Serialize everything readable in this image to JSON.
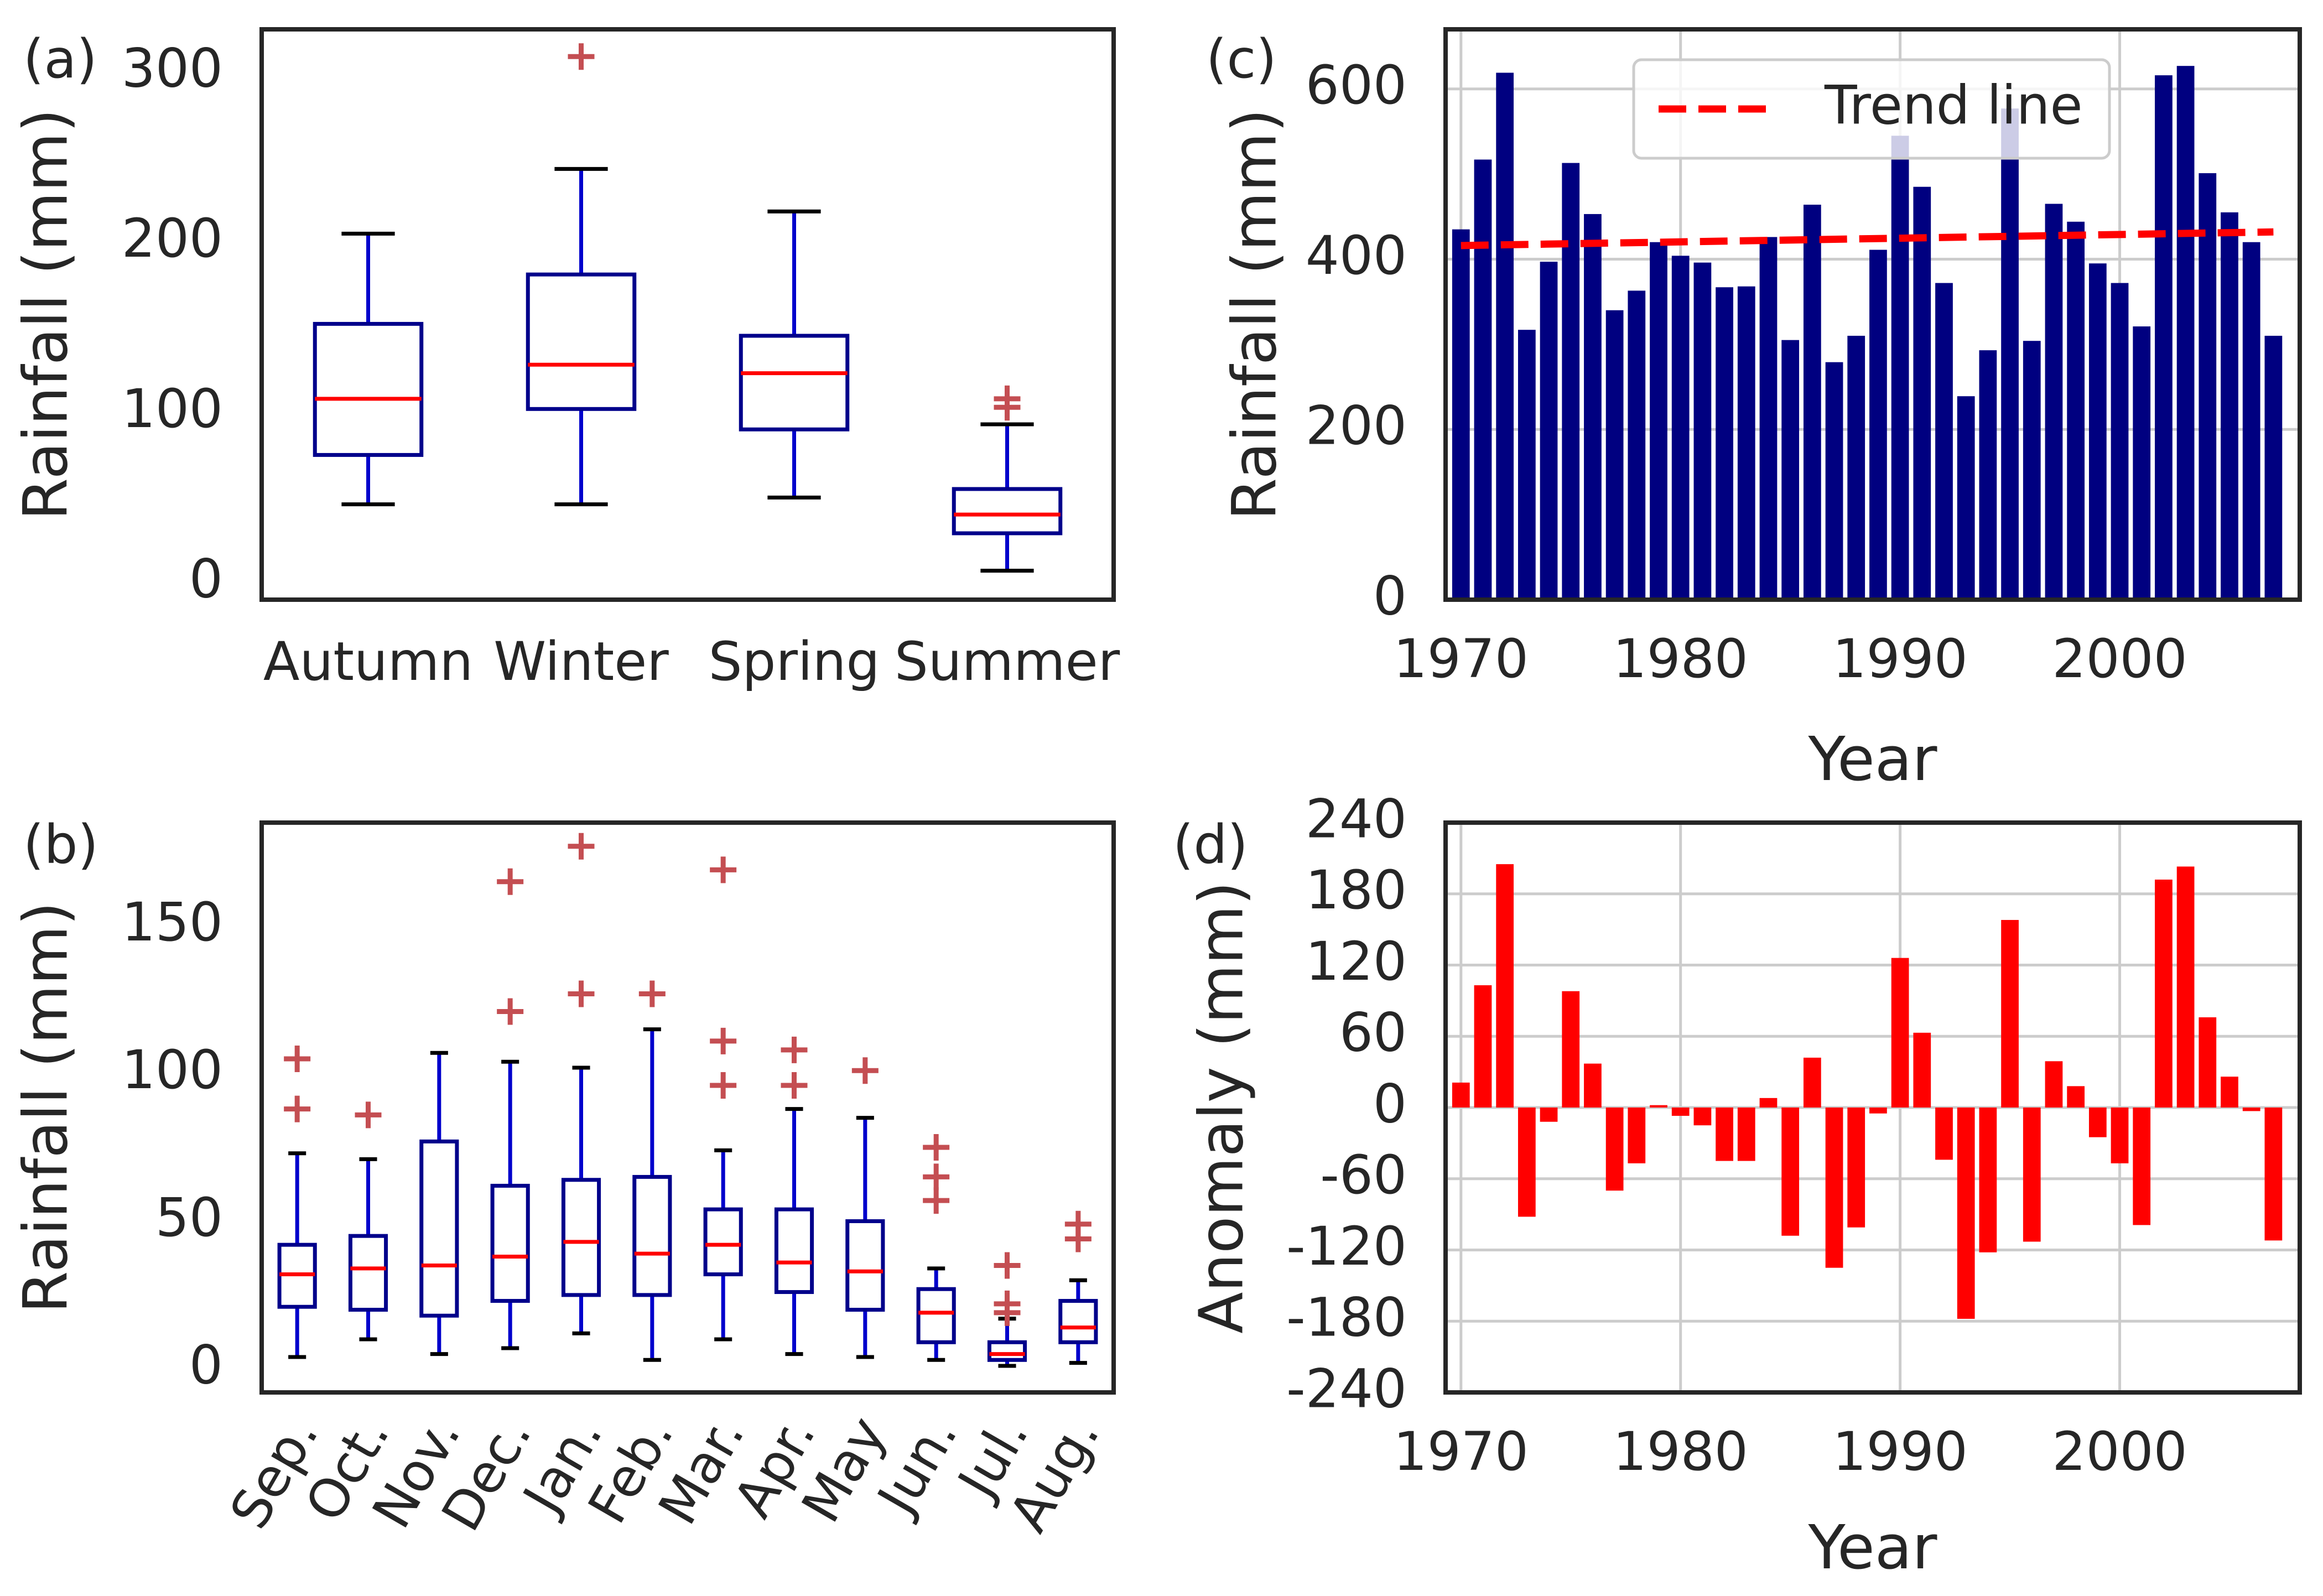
{
  "chart_data": [
    {
      "panel_label": "(a)",
      "type": "box",
      "ylabel": "Rainfall (mm)",
      "ylim": [
        -10,
        325
      ],
      "yticks": [
        0,
        100,
        200,
        300
      ],
      "categories": [
        "Autumn",
        "Winter",
        "Spring",
        "Summer"
      ],
      "box_color": "#0000cc",
      "median_color": "#ff0000",
      "flier_color": "#c44e52",
      "boxes": [
        {
          "whislo": 46,
          "q1": 75,
          "med": 108,
          "q3": 152,
          "whishi": 205,
          "fliers": []
        },
        {
          "whislo": 46,
          "q1": 102,
          "med": 128,
          "q3": 181,
          "whishi": 243,
          "fliers": [
            309
          ]
        },
        {
          "whislo": 50,
          "q1": 90,
          "med": 123,
          "q3": 145,
          "whishi": 218,
          "fliers": []
        },
        {
          "whislo": 7,
          "q1": 29,
          "med": 40,
          "q3": 55,
          "whishi": 93,
          "fliers": [
            103,
            108
          ]
        }
      ]
    },
    {
      "panel_label": "(b)",
      "type": "box",
      "ylabel": "Rainfall (mm)",
      "ylim": [
        -8,
        185
      ],
      "yticks": [
        0,
        50,
        100,
        150
      ],
      "categories": [
        "Sep.",
        "Oct.",
        "Nov.",
        "Dec.",
        "Jan.",
        "Feb.",
        "Mar.",
        "Apr.",
        "May",
        "Jun.",
        "Jul.",
        "Aug."
      ],
      "box_color": "#0000cc",
      "median_color": "#ff0000",
      "flier_color": "#c44e52",
      "boxes": [
        {
          "whislo": 4,
          "q1": 21,
          "med": 32,
          "q3": 42,
          "whishi": 73,
          "fliers": [
            88,
            105
          ]
        },
        {
          "whislo": 10,
          "q1": 20,
          "med": 34,
          "q3": 45,
          "whishi": 71,
          "fliers": [
            86
          ]
        },
        {
          "whislo": 5,
          "q1": 18,
          "med": 35,
          "q3": 77,
          "whishi": 107,
          "fliers": []
        },
        {
          "whislo": 7,
          "q1": 23,
          "med": 38,
          "q3": 62,
          "whishi": 104,
          "fliers": [
            121,
            165
          ]
        },
        {
          "whislo": 12,
          "q1": 25,
          "med": 43,
          "q3": 64,
          "whishi": 102,
          "fliers": [
            127,
            177
          ]
        },
        {
          "whislo": 3,
          "q1": 25,
          "med": 39,
          "q3": 65,
          "whishi": 115,
          "fliers": [
            127
          ]
        },
        {
          "whislo": 10,
          "q1": 32,
          "med": 42,
          "q3": 54,
          "whishi": 74,
          "fliers": [
            96,
            111,
            169
          ]
        },
        {
          "whislo": 5,
          "q1": 26,
          "med": 36,
          "q3": 54,
          "whishi": 88,
          "fliers": [
            96,
            108
          ]
        },
        {
          "whislo": 4,
          "q1": 20,
          "med": 33,
          "q3": 50,
          "whishi": 85,
          "fliers": [
            101
          ]
        },
        {
          "whislo": 3,
          "q1": 9,
          "med": 19,
          "q3": 27,
          "whishi": 34,
          "fliers": [
            57,
            65,
            75
          ]
        },
        {
          "whislo": 1,
          "q1": 3,
          "med": 5,
          "q3": 9,
          "whishi": 17,
          "fliers": [
            19,
            22,
            35
          ]
        },
        {
          "whislo": 2,
          "q1": 9,
          "med": 14,
          "q3": 23,
          "whishi": 30,
          "fliers": [
            44,
            49
          ]
        }
      ]
    },
    {
      "panel_label": "(c)",
      "type": "bar",
      "xlabel": "Year",
      "ylabel": "Rainfall (mm)",
      "xlim": [
        1969.3,
        2008.2
      ],
      "ylim": [
        0,
        670
      ],
      "xticks": [
        1970,
        1980,
        1990,
        2000
      ],
      "yticks": [
        0,
        200,
        400,
        600
      ],
      "bar_color": "#000080",
      "x": [
        1970,
        1971,
        1972,
        1973,
        1974,
        1975,
        1976,
        1977,
        1978,
        1979,
        1980,
        1981,
        1982,
        1983,
        1984,
        1985,
        1986,
        1987,
        1988,
        1989,
        1990,
        1991,
        1992,
        1993,
        1994,
        1995,
        1996,
        1997,
        1998,
        1999,
        2000,
        2001,
        2002,
        2003,
        2004,
        2005,
        2006,
        2007
      ],
      "values": [
        435,
        517,
        619,
        317,
        397,
        513,
        453,
        340,
        363,
        420,
        404,
        396,
        367,
        368,
        426,
        305,
        464,
        279,
        310,
        411,
        545,
        485,
        372,
        239,
        293,
        577,
        304,
        465,
        444,
        395,
        372,
        321,
        616,
        627,
        501,
        455,
        420,
        310
      ],
      "trend": {
        "name": "Trend line",
        "color": "#ff0000",
        "x": [
          1970,
          2007
        ],
        "y": [
          416,
          432
        ]
      },
      "legend_location": "upper center"
    },
    {
      "panel_label": "(d)",
      "type": "bar",
      "xlabel": "Year",
      "ylabel": "Anomaly (mm)",
      "xlim": [
        1969.3,
        2008.2
      ],
      "ylim": [
        -240,
        240
      ],
      "xticks": [
        1970,
        1980,
        1990,
        2000
      ],
      "yticks": [
        240,
        180,
        120,
        60,
        0,
        -60,
        -120,
        -180,
        -240
      ],
      "bar_color": "#ff0000",
      "x": [
        1970,
        1971,
        1972,
        1973,
        1974,
        1975,
        1976,
        1977,
        1978,
        1979,
        1980,
        1981,
        1982,
        1983,
        1984,
        1985,
        1986,
        1987,
        1988,
        1989,
        1990,
        1991,
        1992,
        1993,
        1994,
        1995,
        1996,
        1997,
        1998,
        1999,
        2000,
        2001,
        2002,
        2003,
        2004,
        2005,
        2006,
        2007
      ],
      "values": [
        21,
        103,
        205,
        -92,
        -12,
        98,
        37,
        -70,
        -47,
        2,
        -7,
        -15,
        -45,
        -45,
        8,
        -108,
        42,
        -135,
        -101,
        -5,
        126,
        63,
        -44,
        -178,
        -122,
        158,
        -113,
        39,
        18,
        -25,
        -47,
        -99,
        192,
        203,
        76,
        26,
        -3,
        -112
      ]
    }
  ]
}
